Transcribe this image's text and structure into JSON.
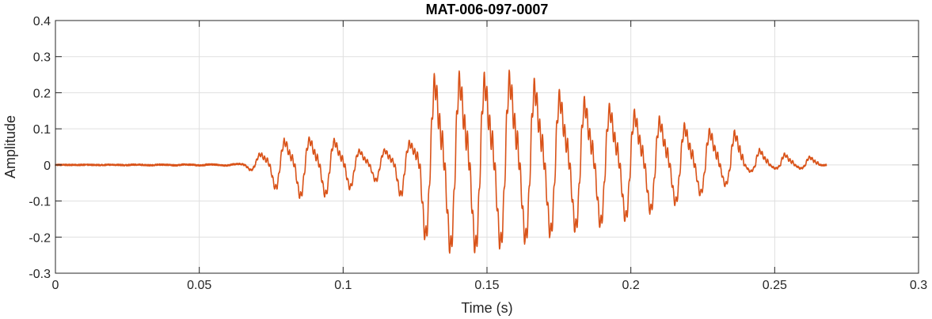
{
  "chart_data": {
    "type": "line",
    "title": "MAT-006-097-0007",
    "xlabel": "Time (s)",
    "ylabel": "Amplitude",
    "xlim": [
      0,
      0.3
    ],
    "ylim": [
      -0.3,
      0.4
    ],
    "x_ticks": [
      0,
      0.05,
      0.1,
      0.15,
      0.2,
      0.25,
      0.3
    ],
    "x_tick_labels": [
      "0",
      "0.05",
      "0.1",
      "0.15",
      "0.2",
      "0.25",
      "0.3"
    ],
    "y_ticks": [
      -0.3,
      -0.2,
      -0.1,
      0,
      0.1,
      0.2,
      0.3,
      0.4
    ],
    "y_tick_labels": [
      "-0.3",
      "-0.2",
      "-0.1",
      "0",
      "0.1",
      "0.2",
      "0.3",
      "0.4"
    ],
    "grid": true,
    "series": [
      {
        "color": "#d95319",
        "x_start": 0,
        "x_end": 0.268,
        "envelope": {
          "t": [
            0,
            0.062,
            0.066,
            0.07,
            0.074,
            0.08,
            0.09,
            0.1,
            0.105,
            0.11,
            0.118,
            0.124,
            0.128,
            0.132,
            0.137,
            0.145,
            0.16,
            0.175,
            0.19,
            0.2,
            0.215,
            0.225,
            0.232,
            0.238,
            0.24,
            0.25,
            0.26,
            0.268
          ],
          "pos": [
            0.0,
            0.002,
            0.01,
            0.03,
            0.06,
            0.085,
            0.09,
            0.08,
            0.05,
            0.04,
            0.06,
            0.08,
            0.15,
            0.3,
            0.3,
            0.29,
            0.3,
            0.24,
            0.2,
            0.18,
            0.14,
            0.12,
            0.11,
            0.11,
            0.06,
            0.04,
            0.03,
            0.02
          ],
          "neg": [
            0.0,
            0.002,
            0.01,
            0.02,
            0.05,
            0.09,
            0.09,
            0.08,
            0.05,
            0.04,
            0.07,
            0.12,
            0.2,
            0.23,
            0.24,
            0.24,
            0.22,
            0.19,
            0.17,
            0.15,
            0.11,
            0.08,
            0.06,
            0.04,
            0.02,
            0.01,
            0.01,
            0.0
          ]
        },
        "pitch_hz": 115
      }
    ]
  }
}
